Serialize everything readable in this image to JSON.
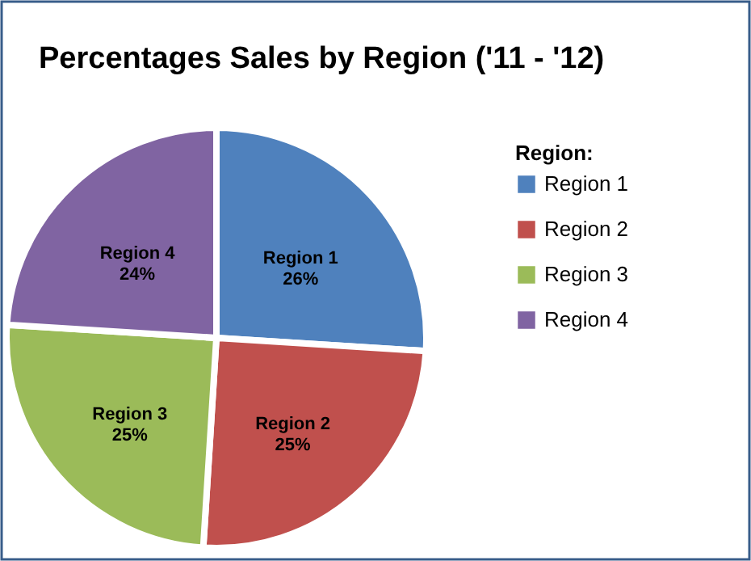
{
  "chart_data": {
    "type": "pie",
    "title": "Percentages Sales by Region ('11 - '12)",
    "legend_title": "Region:",
    "categories": [
      "Region 1",
      "Region 2",
      "Region 3",
      "Region 4"
    ],
    "values": [
      26,
      25,
      25,
      24
    ],
    "value_labels": [
      "26%",
      "25%",
      "25%",
      "24%"
    ],
    "colors": [
      "#4f81bd",
      "#c0504d",
      "#9bbb59",
      "#8064a2"
    ],
    "data_labels": true,
    "legend": "right"
  }
}
